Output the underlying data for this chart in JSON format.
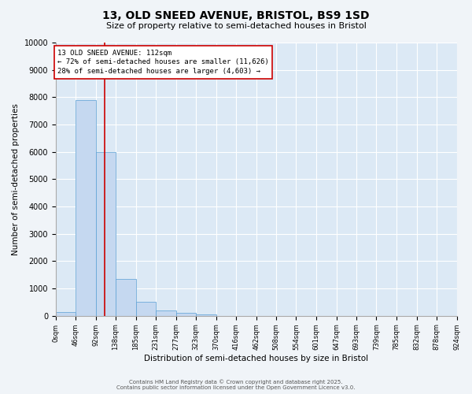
{
  "title_line1": "13, OLD SNEED AVENUE, BRISTOL, BS9 1SD",
  "title_line2": "Size of property relative to semi-detached houses in Bristol",
  "xlabel": "Distribution of semi-detached houses by size in Bristol",
  "ylabel": "Number of semi-detached properties",
  "annotation_title": "13 OLD SNEED AVENUE: 112sqm",
  "annotation_line1": "← 72% of semi-detached houses are smaller (11,626)",
  "annotation_line2": "28% of semi-detached houses are larger (4,603) →",
  "footer_line1": "Contains HM Land Registry data © Crown copyright and database right 2025.",
  "footer_line2": "Contains public sector information licensed under the Open Government Licence v3.0.",
  "property_size": 112,
  "bin_edges": [
    0,
    46,
    92,
    138,
    185,
    231,
    277,
    323,
    370,
    416,
    462,
    508,
    554,
    601,
    647,
    693,
    739,
    785,
    832,
    878,
    924
  ],
  "bar_heights": [
    150,
    7900,
    6000,
    1350,
    500,
    200,
    100,
    50,
    0,
    0,
    0,
    0,
    0,
    0,
    0,
    0,
    0,
    0,
    0,
    0
  ],
  "bar_color": "#c5d8f0",
  "bar_edgecolor": "#5a9fd4",
  "redline_color": "#cc0000",
  "annotation_box_edgecolor": "#cc0000",
  "plot_bg_color": "#dce9f5",
  "fig_bg_color": "#f0f4f8",
  "ylim": [
    0,
    10000
  ],
  "yticks": [
    0,
    1000,
    2000,
    3000,
    4000,
    5000,
    6000,
    7000,
    8000,
    9000,
    10000
  ],
  "title_fontsize": 10,
  "subtitle_fontsize": 8,
  "xlabel_fontsize": 7.5,
  "ylabel_fontsize": 7.5,
  "xtick_fontsize": 6,
  "ytick_fontsize": 7,
  "annotation_fontsize": 6.5,
  "footer_fontsize": 5
}
